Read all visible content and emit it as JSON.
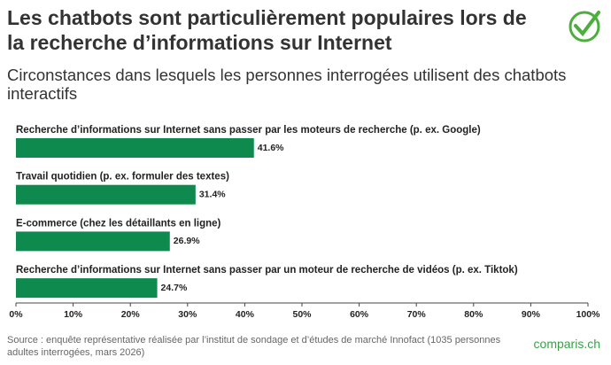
{
  "chart_data": {
    "type": "bar",
    "orientation": "horizontal",
    "title": "Les chatbots sont particulièrement populaires lors de la recherche d’informations sur Internet",
    "subtitle": "Circonstances dans lesquels les personnes interrogées utilisent des chatbots interactifs",
    "categories": [
      "Recherche d’informations sur Internet sans passer par les moteurs de recherche (p. ex. Google)",
      "Travail quotidien (p. ex. formuler des textes)",
      "E-commerce (chez les détaillants en ligne)",
      "Recherche d’informations sur Internet sans passer par un moteur de recherche de vidéos (p. ex. Tiktok)"
    ],
    "values": [
      41.6,
      31.4,
      26.9,
      24.7
    ],
    "value_labels": [
      "41.6%",
      "31.4%",
      "26.9%",
      "24.7%"
    ],
    "color": "#0e8a4f",
    "xlim": [
      0,
      100
    ],
    "xticks": [
      {
        "value": 0,
        "label": "0%"
      },
      {
        "value": 10,
        "label": "10%"
      },
      {
        "value": 20,
        "label": "20%"
      },
      {
        "value": 30,
        "label": "30%"
      },
      {
        "value": 40,
        "label": "40%"
      },
      {
        "value": 50,
        "label": "50%"
      },
      {
        "value": 60,
        "label": "60%"
      },
      {
        "value": 70,
        "label": "70%"
      },
      {
        "value": 80,
        "label": "80%"
      },
      {
        "value": 90,
        "label": "90%"
      },
      {
        "value": 100,
        "label": "100%"
      }
    ],
    "source": "Source : enquête représentative réalisée par l’institut de sondage et d’études de marché Innofact (1035 personnes adultes interrogées, mars 2026)",
    "logo": "comparis.ch"
  }
}
